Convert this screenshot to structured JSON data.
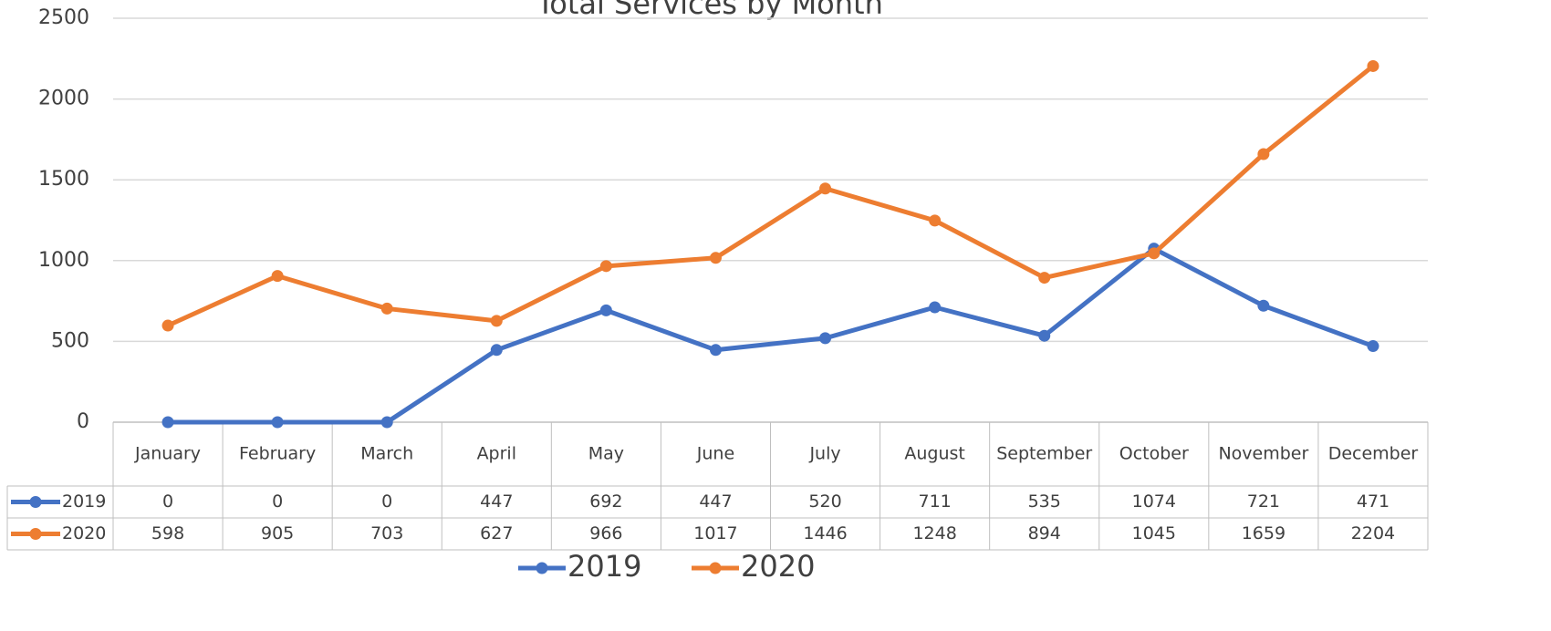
{
  "chart_data": {
    "type": "line",
    "title": "Total Services by Month",
    "categories": [
      "January",
      "February",
      "March",
      "April",
      "May",
      "June",
      "July",
      "August",
      "September",
      "October",
      "November",
      "December"
    ],
    "series": [
      {
        "name": "2019",
        "color": "#4472c4",
        "values": [
          0,
          0,
          0,
          447,
          692,
          447,
          520,
          711,
          535,
          1074,
          721,
          471
        ]
      },
      {
        "name": "2020",
        "color": "#ed7d31",
        "values": [
          598,
          905,
          703,
          627,
          966,
          1017,
          1446,
          1248,
          894,
          1045,
          1659,
          2204
        ]
      }
    ],
    "ylim": [
      0,
      2500
    ],
    "yticks": [
      0,
      500,
      1000,
      1500,
      2000,
      2500
    ],
    "grid": true,
    "legend": "bottom"
  }
}
